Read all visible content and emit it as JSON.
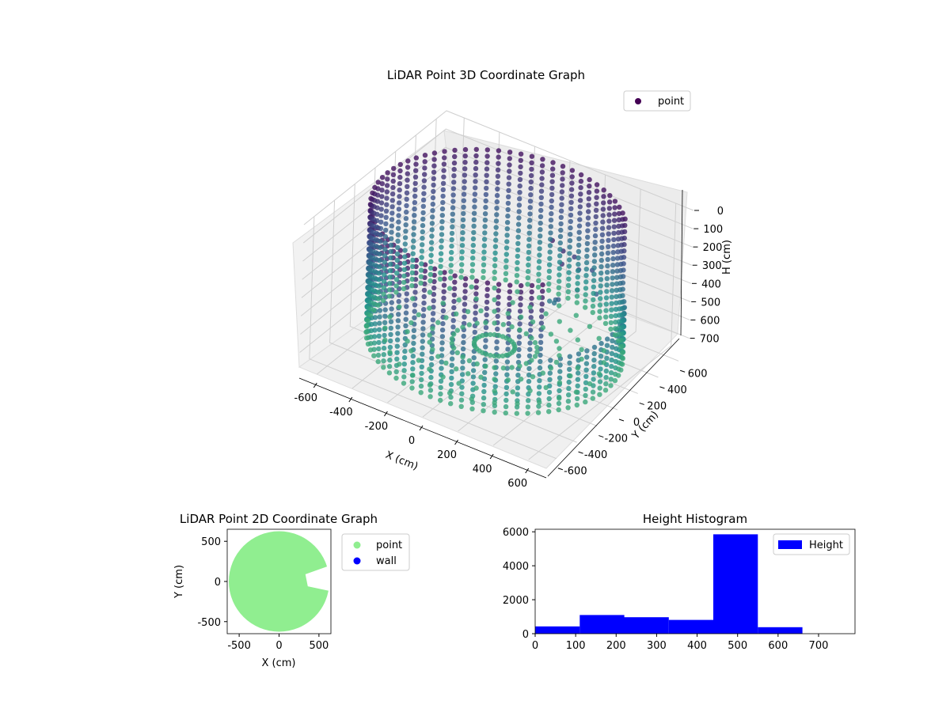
{
  "figure": {
    "background": "#ffffff"
  },
  "chart_data": [
    {
      "id": "3d",
      "type": "scatter",
      "title": "LiDAR Point 3D Coordinate Graph",
      "xlabel": "X (cm)",
      "ylabel": "Y (cm)",
      "zlabel": "H (cm)",
      "xlim": [
        -700,
        700
      ],
      "ylim": [
        -700,
        700
      ],
      "zlim": [
        780,
        0
      ],
      "zticks": [
        0,
        100,
        200,
        300,
        400,
        500,
        600,
        700
      ],
      "xticks": [
        -600,
        -400,
        -200,
        0,
        200,
        400,
        600
      ],
      "yticks": [
        -600,
        -400,
        -200,
        0,
        200,
        400,
        600
      ],
      "grid": true,
      "colormap": "viridis",
      "legend": {
        "position": "top-right",
        "entries": [
          {
            "name": "point",
            "color": "#440154"
          }
        ]
      },
      "series": [
        {
          "name": "point",
          "shape": "cylinder wall",
          "radius": 630,
          "height_range": [
            0,
            700
          ],
          "open_sector_deg": [
            -40,
            40
          ]
        }
      ]
    },
    {
      "id": "2d",
      "type": "scatter",
      "title": "LiDAR Point 2D Coordinate Graph",
      "xlabel": "X (cm)",
      "ylabel": "Y (cm)",
      "xlim": [
        -650,
        650
      ],
      "ylim": [
        -650,
        650
      ],
      "xticks": [
        -500,
        0,
        500
      ],
      "yticks": [
        -500,
        0,
        500
      ],
      "legend": {
        "position": "right",
        "entries": [
          {
            "name": "point",
            "color": "#90ee90"
          },
          {
            "name": "wall",
            "color": "#0000ff"
          }
        ]
      },
      "series": [
        {
          "name": "point",
          "color": "#90ee90",
          "shape": "filled disc",
          "radius": 630
        },
        {
          "name": "wall",
          "color": "#0000ff",
          "values": []
        }
      ]
    },
    {
      "id": "hist",
      "type": "bar",
      "title": "Height Histogram",
      "xlim": [
        0,
        790
      ],
      "ylim": [
        0,
        6150
      ],
      "xticks": [
        0,
        100,
        200,
        300,
        400,
        500,
        600,
        700
      ],
      "yticks": [
        0,
        2000,
        4000,
        6000
      ],
      "legend": {
        "position": "top-right",
        "entries": [
          {
            "name": "Height",
            "color": "#0000ff"
          }
        ]
      },
      "series": [
        {
          "name": "Height",
          "color": "#0000ff",
          "bins": [
            {
              "from": 0,
              "to": 110,
              "count": 430
            },
            {
              "from": 110,
              "to": 220,
              "count": 1100
            },
            {
              "from": 220,
              "to": 330,
              "count": 970
            },
            {
              "from": 330,
              "to": 440,
              "count": 810
            },
            {
              "from": 440,
              "to": 550,
              "count": 5850
            },
            {
              "from": 550,
              "to": 660,
              "count": 380
            },
            {
              "from": 660,
              "to": 770,
              "count": 0
            }
          ]
        }
      ]
    }
  ]
}
